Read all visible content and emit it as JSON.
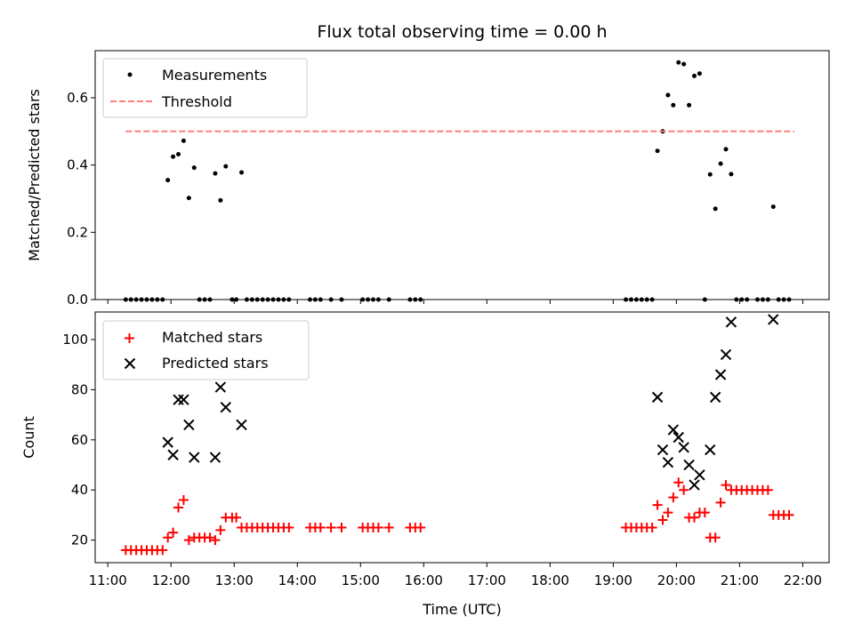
{
  "chart_data": [
    {
      "type": "scatter",
      "title": "Flux total observing time = 0.00 h",
      "xlabel": "",
      "ylabel": "Matched/Predicted stars",
      "ylim": [
        0,
        0.74
      ],
      "xlim": [
        "10:48",
        "22:25"
      ],
      "yticks": [
        0.0,
        0.2,
        0.4,
        0.6
      ],
      "ytick_labels": [
        "0.0",
        "0.2",
        "0.4",
        "0.6"
      ],
      "legend_placement": "upper-left",
      "series": [
        {
          "name": "Measurements",
          "kind": "scatter",
          "marker": "dot",
          "color": "#000000",
          "points": [
            [
              "11:17",
              0
            ],
            [
              "11:22",
              0
            ],
            [
              "11:27",
              0
            ],
            [
              "11:32",
              0
            ],
            [
              "11:37",
              0
            ],
            [
              "11:42",
              0
            ],
            [
              "11:47",
              0
            ],
            [
              "11:52",
              0
            ],
            [
              "11:57",
              0.355
            ],
            [
              "12:02",
              0.425
            ],
            [
              "12:07",
              0.432
            ],
            [
              "12:12",
              0.472
            ],
            [
              "12:17",
              0.302
            ],
            [
              "12:22",
              0.392
            ],
            [
              "12:27",
              0
            ],
            [
              "12:32",
              0
            ],
            [
              "12:37",
              0
            ],
            [
              "12:42",
              0.375
            ],
            [
              "12:47",
              0.295
            ],
            [
              "12:52",
              0.396
            ],
            [
              "12:58",
              0
            ],
            [
              "13:02",
              0
            ],
            [
              "13:07",
              0.378
            ],
            [
              "13:12",
              0
            ],
            [
              "13:17",
              0
            ],
            [
              "13:22",
              0
            ],
            [
              "13:27",
              0
            ],
            [
              "13:32",
              0
            ],
            [
              "13:37",
              0
            ],
            [
              "13:42",
              0
            ],
            [
              "13:47",
              0
            ],
            [
              "13:52",
              0
            ],
            [
              "14:12",
              0
            ],
            [
              "14:17",
              0
            ],
            [
              "14:22",
              0
            ],
            [
              "14:32",
              0
            ],
            [
              "14:42",
              0
            ],
            [
              "15:02",
              0
            ],
            [
              "15:07",
              0
            ],
            [
              "15:12",
              0
            ],
            [
              "15:17",
              0
            ],
            [
              "15:27",
              0
            ],
            [
              "15:47",
              0
            ],
            [
              "15:52",
              0
            ],
            [
              "15:57",
              0
            ],
            [
              "19:12",
              0
            ],
            [
              "19:17",
              0
            ],
            [
              "19:22",
              0
            ],
            [
              "19:27",
              0
            ],
            [
              "19:32",
              0
            ],
            [
              "19:37",
              0
            ],
            [
              "19:42",
              0.442
            ],
            [
              "19:47",
              0.5
            ],
            [
              "19:52",
              0.608
            ],
            [
              "19:57",
              0.578
            ],
            [
              "20:02",
              0.705
            ],
            [
              "20:07",
              0.7
            ],
            [
              "20:12",
              0.578
            ],
            [
              "20:17",
              0.665
            ],
            [
              "20:22",
              0.672
            ],
            [
              "20:27",
              0
            ],
            [
              "20:32",
              0.372
            ],
            [
              "20:37",
              0.27
            ],
            [
              "20:42",
              0.404
            ],
            [
              "20:47",
              0.447
            ],
            [
              "20:52",
              0.373
            ],
            [
              "20:57",
              0
            ],
            [
              "21:02",
              0
            ],
            [
              "21:07",
              0
            ],
            [
              "21:17",
              0
            ],
            [
              "21:22",
              0
            ],
            [
              "21:27",
              0
            ],
            [
              "21:32",
              0.276
            ],
            [
              "21:37",
              0
            ],
            [
              "21:42",
              0
            ],
            [
              "21:47",
              0
            ]
          ]
        },
        {
          "name": "Threshold",
          "kind": "line",
          "style": "dashed",
          "color": "#ff7f7f",
          "points": [
            [
              "11:17",
              0.5
            ],
            [
              "21:52",
              0.5
            ]
          ]
        }
      ]
    },
    {
      "type": "scatter",
      "title": "",
      "xlabel": "Time (UTC)",
      "ylabel": "Count",
      "ylim": [
        11,
        111
      ],
      "xlim": [
        "10:48",
        "22:25"
      ],
      "yticks": [
        20,
        40,
        60,
        80,
        100
      ],
      "ytick_labels": [
        "20",
        "40",
        "60",
        "80",
        "100"
      ],
      "xticks": [
        "11:00",
        "12:00",
        "13:00",
        "14:00",
        "15:00",
        "16:00",
        "17:00",
        "18:00",
        "19:00",
        "20:00",
        "21:00",
        "22:00"
      ],
      "legend_placement": "upper-left",
      "series": [
        {
          "name": "Matched stars",
          "kind": "scatter",
          "marker": "plus",
          "color": "#ff0000",
          "points": [
            [
              "11:17",
              16
            ],
            [
              "11:22",
              16
            ],
            [
              "11:27",
              16
            ],
            [
              "11:32",
              16
            ],
            [
              "11:37",
              16
            ],
            [
              "11:42",
              16
            ],
            [
              "11:47",
              16
            ],
            [
              "11:52",
              16
            ],
            [
              "11:57",
              21
            ],
            [
              "12:02",
              23
            ],
            [
              "12:07",
              33
            ],
            [
              "12:12",
              36
            ],
            [
              "12:17",
              20
            ],
            [
              "12:22",
              21
            ],
            [
              "12:27",
              21
            ],
            [
              "12:32",
              21
            ],
            [
              "12:37",
              21
            ],
            [
              "12:42",
              20
            ],
            [
              "12:47",
              24
            ],
            [
              "12:52",
              29
            ],
            [
              "12:58",
              29
            ],
            [
              "13:02",
              29
            ],
            [
              "13:07",
              25
            ],
            [
              "13:12",
              25
            ],
            [
              "13:17",
              25
            ],
            [
              "13:22",
              25
            ],
            [
              "13:27",
              25
            ],
            [
              "13:32",
              25
            ],
            [
              "13:37",
              25
            ],
            [
              "13:42",
              25
            ],
            [
              "13:47",
              25
            ],
            [
              "13:52",
              25
            ],
            [
              "14:12",
              25
            ],
            [
              "14:17",
              25
            ],
            [
              "14:22",
              25
            ],
            [
              "14:32",
              25
            ],
            [
              "14:42",
              25
            ],
            [
              "15:02",
              25
            ],
            [
              "15:07",
              25
            ],
            [
              "15:12",
              25
            ],
            [
              "15:17",
              25
            ],
            [
              "15:27",
              25
            ],
            [
              "15:47",
              25
            ],
            [
              "15:52",
              25
            ],
            [
              "15:57",
              25
            ],
            [
              "19:12",
              25
            ],
            [
              "19:17",
              25
            ],
            [
              "19:22",
              25
            ],
            [
              "19:27",
              25
            ],
            [
              "19:32",
              25
            ],
            [
              "19:37",
              25
            ],
            [
              "19:42",
              34
            ],
            [
              "19:47",
              28
            ],
            [
              "19:52",
              31
            ],
            [
              "19:57",
              37
            ],
            [
              "20:02",
              43
            ],
            [
              "20:07",
              40
            ],
            [
              "20:12",
              29
            ],
            [
              "20:17",
              29
            ],
            [
              "20:22",
              31
            ],
            [
              "20:27",
              31
            ],
            [
              "20:32",
              21
            ],
            [
              "20:37",
              21
            ],
            [
              "20:42",
              35
            ],
            [
              "20:47",
              42
            ],
            [
              "20:52",
              40
            ],
            [
              "20:57",
              40
            ],
            [
              "21:02",
              40
            ],
            [
              "21:07",
              40
            ],
            [
              "21:12",
              40
            ],
            [
              "21:17",
              40
            ],
            [
              "21:22",
              40
            ],
            [
              "21:27",
              40
            ],
            [
              "21:32",
              30
            ],
            [
              "21:37",
              30
            ],
            [
              "21:42",
              30
            ],
            [
              "21:47",
              30
            ]
          ]
        },
        {
          "name": "Predicted stars",
          "kind": "scatter",
          "marker": "x",
          "color": "#000000",
          "points": [
            [
              "11:57",
              59
            ],
            [
              "12:02",
              54
            ],
            [
              "12:07",
              76
            ],
            [
              "12:12",
              76
            ],
            [
              "12:17",
              66
            ],
            [
              "12:22",
              53
            ],
            [
              "12:42",
              53
            ],
            [
              "12:47",
              81
            ],
            [
              "12:52",
              73
            ],
            [
              "13:07",
              66
            ],
            [
              "19:42",
              77
            ],
            [
              "19:47",
              56
            ],
            [
              "19:52",
              51
            ],
            [
              "19:57",
              64
            ],
            [
              "20:02",
              61
            ],
            [
              "20:07",
              57
            ],
            [
              "20:12",
              50
            ],
            [
              "20:17",
              42
            ],
            [
              "20:22",
              46
            ],
            [
              "20:32",
              56
            ],
            [
              "20:37",
              77
            ],
            [
              "20:42",
              86
            ],
            [
              "20:47",
              94
            ],
            [
              "20:52",
              107
            ],
            [
              "21:32",
              108
            ]
          ]
        }
      ]
    }
  ]
}
